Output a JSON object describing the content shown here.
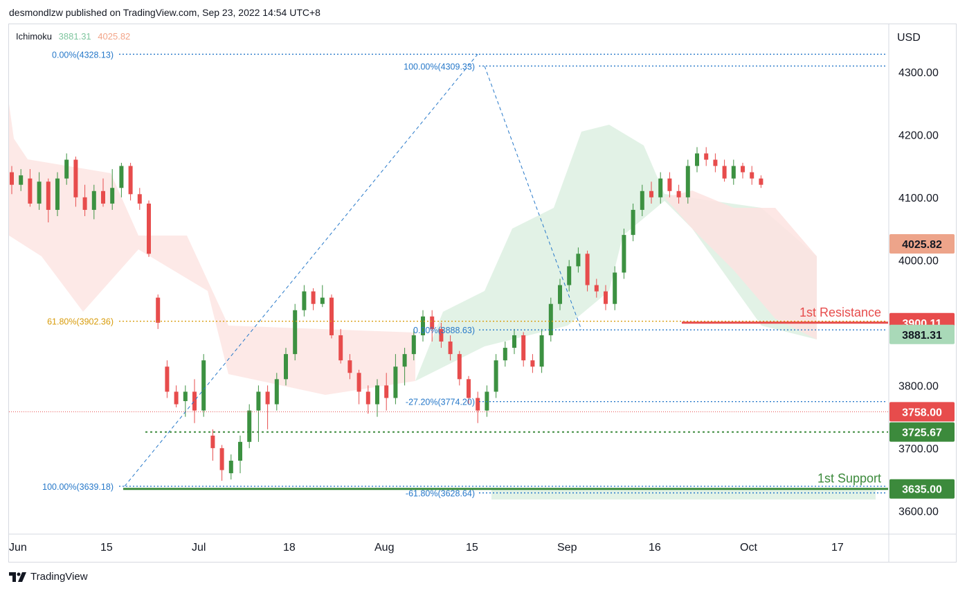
{
  "header": {
    "published": "desmondlzw published on TradingView.com, Sep 23, 2022 14:54 UTC+8"
  },
  "indicator": {
    "name": "Ichimoku",
    "value1": "3881.31",
    "value2": "4025.82"
  },
  "footer": {
    "brand": "TradingView",
    "logo_icon": "tradingview-logo-icon"
  },
  "colors": {
    "up": "#3c9141",
    "down": "#e74c4c",
    "cloud_red": "#fde3e1",
    "cloud_green": "#dff1e3",
    "fib_blue": "#2678c9",
    "fib_orange": "#d89c0c",
    "resistance": "#e74c4c",
    "support": "#3c8a3c",
    "kijun_badge": "#a9d9b8",
    "cloud_badge": "#eda48a"
  },
  "chart_data": {
    "type": "candlestick",
    "currency_label": "USD",
    "ylim": [
      3564,
      4376
    ],
    "y_ticks": [
      "4300.00",
      "4200.00",
      "4100.00",
      "4000.00",
      "3800.00",
      "3700.00",
      "3600.00"
    ],
    "x_ticks": [
      "Jun",
      "15",
      "Jul",
      "18",
      "Aug",
      "15",
      "Sep",
      "16",
      "Oct",
      "17"
    ],
    "x_tick_index": [
      0,
      10,
      20,
      30,
      40,
      50,
      60,
      70,
      80,
      90
    ],
    "candles": [
      [
        4140,
        4120,
        4150,
        4105
      ],
      [
        4120,
        4135,
        4145,
        4110
      ],
      [
        4130,
        4090,
        4145,
        4085
      ],
      [
        4090,
        4125,
        4140,
        4080
      ],
      [
        4125,
        4080,
        4130,
        4060
      ],
      [
        4080,
        4130,
        4140,
        4070
      ],
      [
        4130,
        4160,
        4170,
        4120
      ],
      [
        4160,
        4100,
        4165,
        4085
      ],
      [
        4100,
        4080,
        4120,
        4070
      ],
      [
        4080,
        4110,
        4120,
        4065
      ],
      [
        4110,
        4090,
        4130,
        4085
      ],
      [
        4090,
        4115,
        4145,
        4080
      ],
      [
        4115,
        4150,
        4155,
        4100
      ],
      [
        4150,
        4105,
        4155,
        4095
      ],
      [
        4105,
        4090,
        4115,
        4080
      ],
      [
        4090,
        4010,
        4095,
        4005
      ],
      [
        3940,
        3900,
        3945,
        3890
      ],
      [
        3830,
        3790,
        3840,
        3780
      ],
      [
        3790,
        3770,
        3800,
        3765
      ],
      [
        3775,
        3790,
        3800,
        3750
      ],
      [
        3790,
        3760,
        3810,
        3740
      ],
      [
        3760,
        3840,
        3850,
        3750
      ],
      [
        3720,
        3700,
        3730,
        3680
      ],
      [
        3700,
        3665,
        3705,
        3648
      ],
      [
        3660,
        3680,
        3690,
        3650
      ],
      [
        3680,
        3710,
        3720,
        3660
      ],
      [
        3710,
        3760,
        3770,
        3700
      ],
      [
        3760,
        3790,
        3800,
        3710
      ],
      [
        3790,
        3770,
        3800,
        3730
      ],
      [
        3770,
        3810,
        3820,
        3760
      ],
      [
        3810,
        3850,
        3860,
        3800
      ],
      [
        3850,
        3920,
        3930,
        3840
      ],
      [
        3920,
        3950,
        3960,
        3910
      ],
      [
        3950,
        3930,
        3955,
        3920
      ],
      [
        3930,
        3940,
        3960,
        3925
      ],
      [
        3940,
        3880,
        3945,
        3875
      ],
      [
        3880,
        3840,
        3890,
        3835
      ],
      [
        3840,
        3820,
        3850,
        3810
      ],
      [
        3820,
        3790,
        3825,
        3770
      ],
      [
        3790,
        3770,
        3800,
        3755
      ],
      [
        3770,
        3800,
        3810,
        3750
      ],
      [
        3800,
        3780,
        3820,
        3760
      ],
      [
        3780,
        3830,
        3850,
        3770
      ],
      [
        3830,
        3850,
        3860,
        3800
      ],
      [
        3850,
        3880,
        3890,
        3840
      ],
      [
        3880,
        3910,
        3920,
        3870
      ],
      [
        3910,
        3890,
        3920,
        3870
      ],
      [
        3890,
        3870,
        3900,
        3860
      ],
      [
        3870,
        3850,
        3880,
        3840
      ],
      [
        3850,
        3810,
        3855,
        3800
      ],
      [
        3810,
        3780,
        3815,
        3770
      ],
      [
        3780,
        3760,
        3790,
        3740
      ],
      [
        3760,
        3790,
        3800,
        3750
      ],
      [
        3790,
        3840,
        3850,
        3780
      ],
      [
        3840,
        3860,
        3870,
        3830
      ],
      [
        3860,
        3880,
        3890,
        3850
      ],
      [
        3880,
        3840,
        3885,
        3830
      ],
      [
        3840,
        3830,
        3850,
        3820
      ],
      [
        3830,
        3880,
        3890,
        3820
      ],
      [
        3880,
        3930,
        3940,
        3870
      ],
      [
        3930,
        3960,
        3970,
        3920
      ],
      [
        3960,
        3990,
        4000,
        3950
      ],
      [
        3990,
        4010,
        4020,
        3980
      ],
      [
        4010,
        3960,
        4015,
        3950
      ],
      [
        3960,
        3950,
        3970,
        3940
      ],
      [
        3950,
        3930,
        3960,
        3920
      ],
      [
        3930,
        3980,
        3990,
        3920
      ],
      [
        3980,
        4040,
        4050,
        3970
      ],
      [
        4040,
        4080,
        4090,
        4030
      ],
      [
        4080,
        4110,
        4120,
        4070
      ],
      [
        4110,
        4100,
        4125,
        4090
      ],
      [
        4100,
        4130,
        4140,
        4090
      ],
      [
        4130,
        4110,
        4140,
        4100
      ],
      [
        4110,
        4100,
        4120,
        4090
      ],
      [
        4100,
        4150,
        4160,
        4090
      ],
      [
        4150,
        4170,
        4180,
        4140
      ],
      [
        4170,
        4160,
        4180,
        4150
      ],
      [
        4160,
        4150,
        4170,
        4140
      ],
      [
        4150,
        4130,
        4160,
        4125
      ],
      [
        4130,
        4150,
        4160,
        4120
      ],
      [
        4150,
        4140,
        4155,
        4130
      ],
      [
        4140,
        4130,
        4150,
        4120
      ],
      [
        4130,
        4120,
        4135,
        4115
      ]
    ],
    "candles_note_ok": "",
    "fib_levels": [
      {
        "label": "0.00%(4328.13)",
        "value": 4328.13
      },
      {
        "label": "61.80%(3902.36)",
        "value": 3902.36
      },
      {
        "label": "100.00%(3639.18)",
        "value": 3639.18
      },
      {
        "label": "100.00%(4309.33)",
        "value": 4309.33
      },
      {
        "label": "0.00%(3888.63)",
        "value": 3888.63
      },
      {
        "label": "-27.20%(3774.20)",
        "value": 3774.2
      },
      {
        "label": "-61.80%(3628.64)",
        "value": 3628.64
      }
    ],
    "levels": {
      "resistance": {
        "label": "1st Resistance",
        "value": 3900.11,
        "badge": "3900.11"
      },
      "kijun": {
        "value": 3881.31,
        "badge": "3881.31"
      },
      "last": {
        "value": 3758.0,
        "badge": "3758.00"
      },
      "intermediate_support": {
        "value": 3725.67,
        "badge": "3725.67"
      },
      "support": {
        "label": "1st Support",
        "value": 3635.0,
        "badge": "3635.00"
      },
      "cloud": {
        "value": 4025.82,
        "badge": "4025.82"
      }
    }
  }
}
